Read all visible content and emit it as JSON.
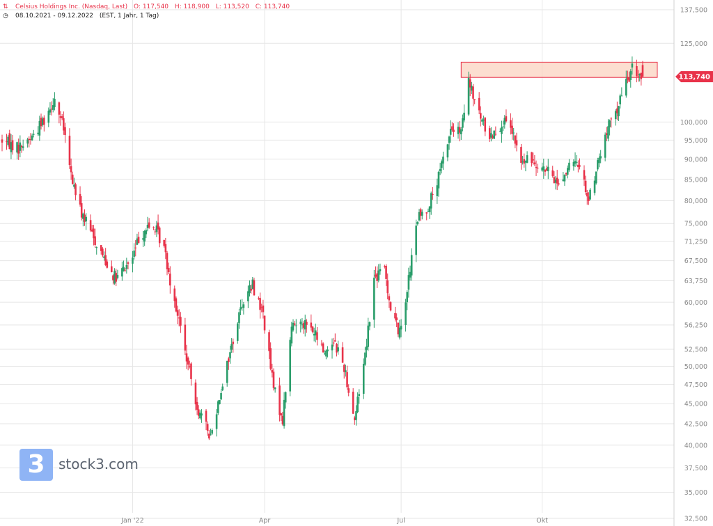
{
  "header": {
    "instrument": "Celsius Holdings Inc. (Nasdaq, Last)",
    "open": "O: 117,540",
    "high": "H: 118,900",
    "low": "L: 113,520",
    "close": "C: 113,740",
    "range": "08.10.2021 - 09.12.2022",
    "meta": "(EST, 1 Jahr, 1 Tag)",
    "instrument_icon": "candlestick-icon",
    "range_icon": "clock-icon"
  },
  "watermark": {
    "text": "stock3.com",
    "glyph": "3"
  },
  "colors": {
    "up": "#2a9d6a",
    "down": "#e8334a",
    "zone_fill": "#fbd3c0",
    "zone_stroke": "#e8334a",
    "grid": "#e6e6e6",
    "axis_text": "#888888"
  },
  "chart_data": {
    "type": "candlestick",
    "x_range": [
      "2021-10-08",
      "2022-12-09"
    ],
    "y_scale": "log",
    "ylim": [
      32.5,
      137.5
    ],
    "y_ticks": [
      "137,500",
      "125,000",
      "113,740",
      "100,000",
      "95,000",
      "90,000",
      "85,000",
      "80,000",
      "75,000",
      "71,250",
      "67,500",
      "63,750",
      "60,000",
      "56,250",
      "52,500",
      "50,000",
      "47,500",
      "45,000",
      "42,500",
      "40,000",
      "37,500",
      "35,000",
      "32,500"
    ],
    "x_ticks": [
      "Jan '22",
      "Apr",
      "Jul",
      "Okt"
    ],
    "last_price": 113.74,
    "last_price_label": "113,740",
    "resistance_zone": {
      "low": 113.5,
      "high": 118.5,
      "from": "2022-08-10",
      "to": "2022-12-12"
    },
    "anchors": [
      [
        "2021-10-08",
        95,
        0.6
      ],
      [
        "2021-10-19",
        93,
        0.6
      ],
      [
        "2021-10-28",
        96,
        0.6
      ],
      [
        "2021-11-05",
        101,
        0.6
      ],
      [
        "2021-11-12",
        107,
        0.5
      ],
      [
        "2021-11-18",
        98,
        0.6
      ],
      [
        "2021-11-23",
        86,
        0.6
      ],
      [
        "2021-11-29",
        78,
        0.6
      ],
      [
        "2021-12-08",
        72,
        0.6
      ],
      [
        "2021-12-17",
        67,
        0.6
      ],
      [
        "2021-12-23",
        64,
        0.6
      ],
      [
        "2022-01-03",
        68,
        0.6
      ],
      [
        "2022-01-07",
        72,
        0.6
      ],
      [
        "2022-01-12",
        74,
        0.6
      ],
      [
        "2022-01-18",
        74,
        0.6
      ],
      [
        "2022-01-24",
        70,
        0.6
      ],
      [
        "2022-01-28",
        64,
        0.6
      ],
      [
        "2022-02-03",
        57,
        0.6
      ],
      [
        "2022-02-09",
        50,
        0.6
      ],
      [
        "2022-02-16",
        44,
        0.6
      ],
      [
        "2022-02-24",
        41,
        0.6
      ],
      [
        "2022-03-03",
        47,
        0.6
      ],
      [
        "2022-03-10",
        53,
        0.6
      ],
      [
        "2022-03-17",
        60,
        0.6
      ],
      [
        "2022-03-24",
        63,
        0.6
      ],
      [
        "2022-03-31",
        58,
        0.6
      ],
      [
        "2022-04-07",
        47,
        0.6
      ],
      [
        "2022-04-13",
        43,
        0.6
      ],
      [
        "2022-04-19",
        56,
        0.6
      ],
      [
        "2022-04-26",
        57,
        0.6
      ],
      [
        "2022-05-04",
        55,
        0.6
      ],
      [
        "2022-05-11",
        52,
        0.6
      ],
      [
        "2022-05-17",
        54,
        0.6
      ],
      [
        "2022-05-24",
        50,
        0.6
      ],
      [
        "2022-05-31",
        43,
        0.6
      ],
      [
        "2022-06-07",
        52,
        0.6
      ],
      [
        "2022-06-13",
        64,
        0.6
      ],
      [
        "2022-06-20",
        66,
        0.6
      ],
      [
        "2022-06-24",
        59,
        0.6
      ],
      [
        "2022-06-30",
        55,
        0.6
      ],
      [
        "2022-07-06",
        64,
        0.6
      ],
      [
        "2022-07-12",
        76,
        0.6
      ],
      [
        "2022-07-18",
        78,
        0.6
      ],
      [
        "2022-07-25",
        84,
        0.6
      ],
      [
        "2022-08-03",
        98,
        0.6
      ],
      [
        "2022-08-10",
        97,
        0.6
      ],
      [
        "2022-08-15",
        112,
        0.6
      ],
      [
        "2022-08-22",
        102,
        0.6
      ],
      [
        "2022-08-29",
        96,
        0.6
      ],
      [
        "2022-09-07",
        100,
        0.6
      ],
      [
        "2022-09-13",
        97,
        0.6
      ],
      [
        "2022-09-19",
        89,
        0.6
      ],
      [
        "2022-09-27",
        90,
        0.6
      ],
      [
        "2022-10-06",
        87,
        0.6
      ],
      [
        "2022-10-14",
        84,
        0.6
      ],
      [
        "2022-10-21",
        88,
        0.6
      ],
      [
        "2022-10-28",
        89,
        0.6
      ],
      [
        "2022-11-03",
        80,
        0.6
      ],
      [
        "2022-11-09",
        89,
        0.6
      ],
      [
        "2022-11-16",
        98,
        0.6
      ],
      [
        "2022-11-22",
        104,
        0.6
      ],
      [
        "2022-11-28",
        112,
        0.6
      ],
      [
        "2022-12-02",
        116,
        0.6
      ],
      [
        "2022-12-09",
        113.74,
        0.6
      ]
    ]
  }
}
